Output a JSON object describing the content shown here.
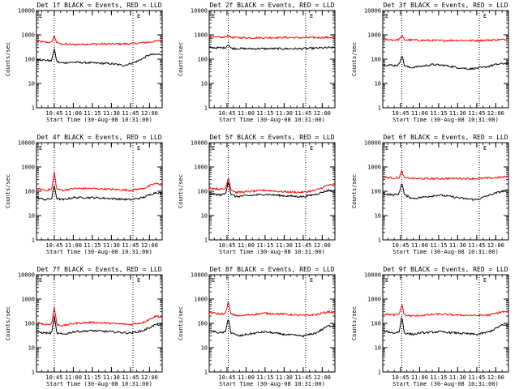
{
  "chart_data": [
    {
      "type": "line",
      "title": "Det 1f BLACK = Events, RED = LLD",
      "xlabel": "Start Time (30-Aug-08 10:31:00)",
      "ylabel": "Counts/sec",
      "yscale": "log",
      "ylim": [
        1,
        10000
      ],
      "yticks": [
        "1",
        "10",
        "100",
        "1000",
        "10000"
      ],
      "xlim": [
        "10:31",
        "12:10"
      ],
      "xticks": [
        "10:45",
        "11:00",
        "11:15",
        "11:30",
        "11:45",
        "12:00"
      ],
      "markers": [
        "10:45",
        "11:47"
      ],
      "markers_label": "E",
      "series": [
        {
          "color": "#ff0000",
          "x": [
            "10:31",
            "10:38",
            "10:43",
            "10:44",
            "10:45",
            "10:47",
            "10:50",
            "11:00",
            "11:15",
            "11:30",
            "11:45",
            "12:00",
            "12:10"
          ],
          "y": [
            550,
            500,
            480,
            700,
            900,
            480,
            420,
            400,
            420,
            420,
            430,
            500,
            600
          ]
        },
        {
          "color": "#000000",
          "x": [
            "10:31",
            "10:38",
            "10:43",
            "10:44",
            "10:45",
            "10:47",
            "10:50",
            "11:00",
            "11:15",
            "11:30",
            "11:40",
            "11:50",
            "12:00",
            "12:10"
          ],
          "y": [
            100,
            90,
            85,
            180,
            260,
            80,
            70,
            75,
            70,
            65,
            55,
            80,
            150,
            160
          ]
        }
      ]
    },
    {
      "type": "line",
      "title": "Det 2f BLACK = Events, RED = LLD",
      "xlabel": "Start Time (30-Aug-08 10:31:00)",
      "ylabel": "Counts/sec",
      "yscale": "log",
      "ylim": [
        1,
        10000
      ],
      "yticks": [
        "1",
        "10",
        "100",
        "1000",
        "10000"
      ],
      "xlim": [
        "10:31",
        "12:10"
      ],
      "xticks": [
        "10:45",
        "11:00",
        "11:15",
        "11:30",
        "11:45",
        "12:00"
      ],
      "markers": [
        "10:46",
        "11:47"
      ],
      "markers_label": "E",
      "series": [
        {
          "color": "#ff0000",
          "x": [
            "10:31",
            "10:40",
            "10:44",
            "10:46",
            "10:48",
            "11:00",
            "11:15",
            "11:30",
            "11:45",
            "12:00",
            "12:10"
          ],
          "y": [
            800,
            780,
            800,
            1000,
            780,
            760,
            760,
            780,
            760,
            780,
            780
          ]
        },
        {
          "color": "#000000",
          "x": [
            "10:31",
            "10:40",
            "10:44",
            "10:46",
            "10:48",
            "11:00",
            "11:15",
            "11:30",
            "11:45",
            "12:00",
            "12:10"
          ],
          "y": [
            300,
            290,
            300,
            420,
            280,
            270,
            270,
            270,
            270,
            290,
            300
          ]
        }
      ]
    },
    {
      "type": "line",
      "title": "Det 3f BLACK = Events, RED = LLD",
      "xlabel": "Start Time (30-Aug-08 10:31:00)",
      "ylabel": "Counts/sec",
      "yscale": "log",
      "ylim": [
        1,
        10000
      ],
      "yticks": [
        "1",
        "10",
        "100",
        "1000",
        "10000"
      ],
      "xlim": [
        "10:31",
        "12:10"
      ],
      "xticks": [
        "10:45",
        "11:00",
        "11:15",
        "11:30",
        "11:45",
        "12:00"
      ],
      "markers": [
        "10:46",
        "11:47"
      ],
      "markers_label": "E",
      "series": [
        {
          "color": "#ff0000",
          "x": [
            "10:31",
            "10:40",
            "10:44",
            "10:46",
            "10:48",
            "11:00",
            "11:15",
            "11:30",
            "11:45",
            "12:00",
            "12:10"
          ],
          "y": [
            650,
            620,
            640,
            950,
            620,
            600,
            580,
            600,
            580,
            620,
            650
          ]
        },
        {
          "color": "#000000",
          "x": [
            "10:31",
            "10:40",
            "10:44",
            "10:46",
            "10:48",
            "10:52",
            "11:00",
            "11:10",
            "11:20",
            "11:30",
            "11:40",
            "11:50",
            "12:00",
            "12:10"
          ],
          "y": [
            60,
            55,
            60,
            160,
            55,
            45,
            50,
            60,
            55,
            45,
            40,
            45,
            60,
            70
          ]
        }
      ]
    },
    {
      "type": "line",
      "title": "Det 4f BLACK = Events, RED = LLD",
      "xlabel": "Start Time (30-Aug-08 10:31:00)",
      "ylabel": "Counts/sec",
      "yscale": "log",
      "ylim": [
        1,
        10000
      ],
      "yticks": [
        "1",
        "10",
        "100",
        "1000",
        "10000"
      ],
      "xlim": [
        "10:31",
        "12:10"
      ],
      "xticks": [
        "10:45",
        "11:00",
        "11:15",
        "11:30",
        "11:45",
        "12:00"
      ],
      "markers": [
        "10:45",
        "11:47"
      ],
      "markers_label": "E",
      "series": [
        {
          "color": "#ff0000",
          "x": [
            "10:31",
            "10:38",
            "10:43",
            "10:45",
            "10:47",
            "10:52",
            "11:00",
            "11:15",
            "11:30",
            "11:45",
            "11:55",
            "12:05",
            "12:10"
          ],
          "y": [
            130,
            110,
            120,
            600,
            120,
            110,
            130,
            130,
            120,
            110,
            130,
            210,
            180
          ]
        },
        {
          "color": "#000000",
          "x": [
            "10:31",
            "10:38",
            "10:43",
            "10:45",
            "10:47",
            "10:52",
            "11:00",
            "11:15",
            "11:30",
            "11:45",
            "11:55",
            "12:05",
            "12:10"
          ],
          "y": [
            55,
            45,
            50,
            180,
            50,
            45,
            55,
            55,
            50,
            45,
            55,
            90,
            80
          ]
        }
      ]
    },
    {
      "type": "line",
      "title": "Det 5f BLACK = Events, RED = LLD",
      "xlabel": "Start Time (30-Aug-08 10:31:00)",
      "ylabel": "Counts/sec",
      "yscale": "log",
      "ylim": [
        1,
        10000
      ],
      "yticks": [
        "1",
        "10",
        "100",
        "1000",
        "10000"
      ],
      "xlim": [
        "10:31",
        "12:10"
      ],
      "xticks": [
        "10:45",
        "11:00",
        "11:15",
        "11:30",
        "11:45",
        "12:00"
      ],
      "markers": [
        "10:46",
        "11:47"
      ],
      "markers_label": "E",
      "series": [
        {
          "color": "#ff0000",
          "x": [
            "10:31",
            "10:40",
            "10:44",
            "10:46",
            "10:48",
            "10:52",
            "11:00",
            "11:15",
            "11:30",
            "11:45",
            "11:55",
            "12:05",
            "12:10"
          ],
          "y": [
            140,
            120,
            130,
            400,
            120,
            90,
            95,
            110,
            95,
            90,
            110,
            180,
            170
          ]
        },
        {
          "color": "#000000",
          "x": [
            "10:31",
            "10:40",
            "10:44",
            "10:46",
            "10:48",
            "10:52",
            "11:00",
            "11:15",
            "11:30",
            "11:45",
            "11:55",
            "12:05",
            "12:10"
          ],
          "y": [
            80,
            70,
            80,
            280,
            75,
            60,
            65,
            75,
            65,
            60,
            75,
            110,
            100
          ]
        }
      ]
    },
    {
      "type": "line",
      "title": "Det 6f BLACK = Events, RED = LLD",
      "xlabel": "Start Time (30-Aug-08 10:31:00)",
      "ylabel": "Counts/sec",
      "yscale": "log",
      "ylim": [
        1,
        10000
      ],
      "yticks": [
        "1",
        "10",
        "100",
        "1000",
        "10000"
      ],
      "xlim": [
        "10:31",
        "12:10"
      ],
      "xticks": [
        "10:45",
        "11:00",
        "11:15",
        "11:30",
        "11:45",
        "12:00"
      ],
      "markers": [
        "10:46",
        "11:47"
      ],
      "markers_label": "E",
      "series": [
        {
          "color": "#ff0000",
          "x": [
            "10:31",
            "10:40",
            "10:44",
            "10:46",
            "10:48",
            "11:00",
            "11:15",
            "11:30",
            "11:45",
            "12:00",
            "12:10"
          ],
          "y": [
            380,
            350,
            360,
            700,
            350,
            330,
            330,
            340,
            330,
            360,
            400
          ]
        },
        {
          "color": "#000000",
          "x": [
            "10:31",
            "10:40",
            "10:44",
            "10:46",
            "10:48",
            "10:55",
            "11:05",
            "11:15",
            "11:25",
            "11:35",
            "11:45",
            "11:55",
            "12:05",
            "12:10"
          ],
          "y": [
            80,
            70,
            80,
            250,
            70,
            50,
            60,
            70,
            60,
            50,
            45,
            70,
            100,
            110
          ]
        }
      ]
    },
    {
      "type": "line",
      "title": "Det 7f BLACK = Events, RED = LLD",
      "xlabel": "Start Time (30-Aug-08 10:31:00)",
      "ylabel": "Counts/sec",
      "yscale": "log",
      "ylim": [
        1,
        10000
      ],
      "yticks": [
        "1",
        "10",
        "100",
        "1000",
        "10000"
      ],
      "xlim": [
        "10:31",
        "12:10"
      ],
      "xticks": [
        "10:45",
        "11:00",
        "11:15",
        "11:30",
        "11:45",
        "12:00"
      ],
      "markers": [
        "10:45",
        "11:47"
      ],
      "markers_label": "E",
      "series": [
        {
          "color": "#ff0000",
          "x": [
            "10:31",
            "10:38",
            "10:43",
            "10:45",
            "10:47",
            "10:52",
            "11:00",
            "11:15",
            "11:30",
            "11:45",
            "11:55",
            "12:05",
            "12:10"
          ],
          "y": [
            110,
            90,
            95,
            500,
            90,
            80,
            100,
            110,
            100,
            90,
            110,
            200,
            180
          ]
        },
        {
          "color": "#000000",
          "x": [
            "10:31",
            "10:38",
            "10:43",
            "10:45",
            "10:47",
            "10:52",
            "11:00",
            "11:15",
            "11:30",
            "11:45",
            "11:55",
            "12:05",
            "12:10"
          ],
          "y": [
            45,
            40,
            40,
            200,
            40,
            35,
            45,
            50,
            45,
            40,
            50,
            90,
            85
          ]
        }
      ]
    },
    {
      "type": "line",
      "title": "Det 8f BLACK = Events, RED = LLD",
      "xlabel": "Start Time (30-Aug-08 10:31:00)",
      "ylabel": "Counts/sec",
      "yscale": "log",
      "ylim": [
        1,
        10000
      ],
      "yticks": [
        "1",
        "10",
        "100",
        "1000",
        "10000"
      ],
      "xlim": [
        "10:31",
        "12:10"
      ],
      "xticks": [
        "10:45",
        "11:00",
        "11:15",
        "11:30",
        "11:45",
        "12:00"
      ],
      "markers": [
        "10:46",
        "11:47"
      ],
      "markers_label": "E",
      "series": [
        {
          "color": "#ff0000",
          "x": [
            "10:31",
            "10:40",
            "10:44",
            "10:46",
            "10:48",
            "10:55",
            "11:00",
            "11:15",
            "11:30",
            "11:45",
            "11:55",
            "12:05",
            "12:10"
          ],
          "y": [
            280,
            240,
            260,
            800,
            240,
            200,
            220,
            260,
            240,
            210,
            230,
            300,
            270
          ]
        },
        {
          "color": "#000000",
          "x": [
            "10:31",
            "10:40",
            "10:44",
            "10:46",
            "10:48",
            "10:55",
            "11:00",
            "11:15",
            "11:30",
            "11:45",
            "11:55",
            "12:05",
            "12:10"
          ],
          "y": [
            50,
            40,
            45,
            180,
            40,
            30,
            35,
            45,
            35,
            30,
            40,
            80,
            75
          ]
        }
      ]
    },
    {
      "type": "line",
      "title": "Det 9f BLACK = Events, RED = LLD",
      "xlabel": "Start Time (30-Aug-08 10:31:00)",
      "ylabel": "Counts/sec",
      "yscale": "log",
      "ylim": [
        1,
        10000
      ],
      "yticks": [
        "1",
        "10",
        "100",
        "1000",
        "10000"
      ],
      "xlim": [
        "10:31",
        "12:10"
      ],
      "xticks": [
        "10:45",
        "11:00",
        "11:15",
        "11:30",
        "11:45",
        "12:00"
      ],
      "markers": [
        "10:46",
        "11:47"
      ],
      "markers_label": "E",
      "series": [
        {
          "color": "#ff0000",
          "x": [
            "10:31",
            "10:40",
            "10:44",
            "10:46",
            "10:48",
            "10:55",
            "11:00",
            "11:15",
            "11:30",
            "11:45",
            "11:55",
            "12:05",
            "12:10"
          ],
          "y": [
            250,
            220,
            240,
            600,
            220,
            200,
            210,
            240,
            220,
            210,
            220,
            300,
            290
          ]
        },
        {
          "color": "#000000",
          "x": [
            "10:31",
            "10:40",
            "10:44",
            "10:46",
            "10:48",
            "10:55",
            "11:00",
            "11:15",
            "11:30",
            "11:45",
            "11:55",
            "12:05",
            "12:10"
          ],
          "y": [
            50,
            40,
            45,
            200,
            40,
            35,
            40,
            45,
            40,
            35,
            45,
            85,
            80
          ]
        }
      ]
    }
  ]
}
